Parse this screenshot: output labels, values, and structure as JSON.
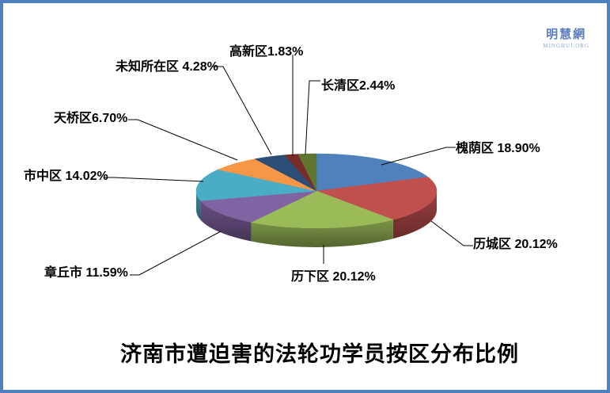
{
  "page": {
    "background": "#ffffff",
    "border_color": "#4e81bd"
  },
  "logo": {
    "title": "明慧網",
    "subtitle": "MINGHUI.ORG",
    "color": "#5b7ec2"
  },
  "chart_data": {
    "type": "pie",
    "style": "3d",
    "title": "济南市遭迫害的法轮功学员按区分布比例",
    "unit": "percent",
    "start_angle_deg": -90,
    "direction": "clockwise",
    "legend_position": "none",
    "labels_position": "outside-with-leader-lines",
    "slices": [
      {
        "label": "槐荫区",
        "value": 18.9,
        "display": "槐荫区 18.90%",
        "color": "#4F81BD"
      },
      {
        "label": "历城区",
        "value": 20.12,
        "display": "历城区 20.12%",
        "color": "#C0504D"
      },
      {
        "label": "历下区",
        "value": 20.12,
        "display": "历下区 20.12%",
        "color": "#9BBB59"
      },
      {
        "label": "章丘市",
        "value": 11.59,
        "display": "章丘市 11.59%",
        "color": "#8064A2"
      },
      {
        "label": "市中区",
        "value": 14.02,
        "display": "市中区 14.02%",
        "color": "#4BACC6"
      },
      {
        "label": "天桥区",
        "value": 6.7,
        "display": "天桥区6.70%",
        "color": "#F79646"
      },
      {
        "label": "未知所在区",
        "value": 4.28,
        "display": "未知所在区 4.28%",
        "color": "#2C4D75"
      },
      {
        "label": "高新区",
        "value": 1.83,
        "display": "高新区1.83%",
        "color": "#772C2A"
      },
      {
        "label": "长清区",
        "value": 2.44,
        "display": "长清区2.44%",
        "color": "#5F7530"
      }
    ]
  }
}
